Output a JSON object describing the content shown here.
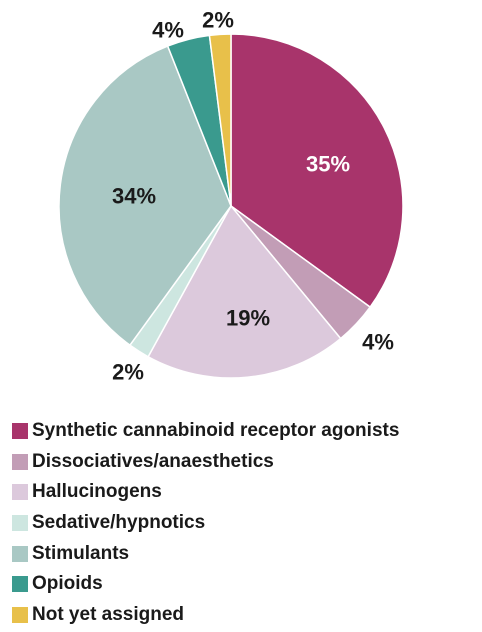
{
  "chart_data": {
    "type": "pie",
    "title": "",
    "start_angle_deg": 0,
    "direction": "clockwise",
    "legend_position": "bottom-left",
    "slices": [
      {
        "name": "Synthetic cannabinoid receptor agonists",
        "value": 35,
        "label": "35%",
        "color": "#a8346b",
        "label_color": "#ffffff"
      },
      {
        "name": "Dissociatives/anaesthetics",
        "value": 4,
        "label": "4%",
        "color": "#c29db6",
        "label_color": "#1a1a1a"
      },
      {
        "name": "Hallucinogens",
        "value": 19,
        "label": "19%",
        "color": "#dcc9dc",
        "label_color": "#1a1a1a"
      },
      {
        "name": "Sedative/hypnotics",
        "value": 2,
        "label": "2%",
        "color": "#cde6e0",
        "label_color": "#1a1a1a"
      },
      {
        "name": "Stimulants",
        "value": 34,
        "label": "34%",
        "color": "#a9c8c4",
        "label_color": "#1a1a1a"
      },
      {
        "name": "Opioids",
        "value": 4,
        "label": "4%",
        "color": "#3a9a8e",
        "label_color": "#1a1a1a"
      },
      {
        "name": "Not yet assigned",
        "value": 2,
        "label": "2%",
        "color": "#e8c04a",
        "label_color": "#1a1a1a"
      }
    ]
  }
}
